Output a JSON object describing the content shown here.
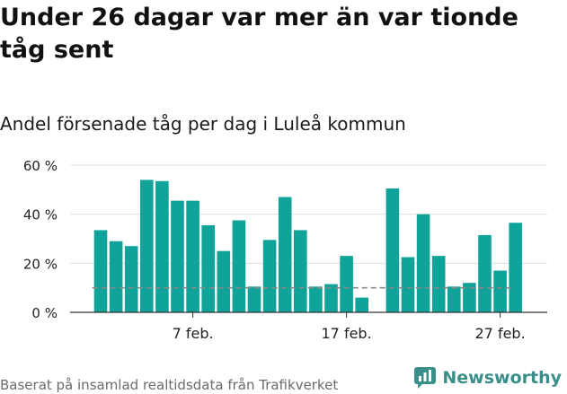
{
  "header": {
    "title": "Under 26 dagar var mer än var tionde tåg sent",
    "subtitle": "Andel försenade tåg per dag i Luleå kommun"
  },
  "footer": {
    "source": "Baserat på insamlad realtidsdata från Trafikverket",
    "brand": "Newsworthy"
  },
  "colors": {
    "bar": "#0fa39a",
    "reference_line": "#888888",
    "grid": "#dddddd",
    "brand": "#3a8f8a"
  },
  "chart_data": {
    "type": "bar",
    "ylim": [
      0,
      60
    ],
    "yticks": [
      0,
      20,
      40,
      60
    ],
    "ytick_labels": [
      "0 %",
      "20 %",
      "40 %",
      "60 %"
    ],
    "reference_value": 10,
    "xtick_labels": [
      {
        "day": 7,
        "label": "7 feb."
      },
      {
        "day": 17,
        "label": "17 feb."
      },
      {
        "day": 27,
        "label": "27 feb."
      }
    ],
    "x": [
      1,
      2,
      3,
      4,
      5,
      6,
      7,
      8,
      9,
      10,
      11,
      12,
      13,
      14,
      15,
      16,
      17,
      18,
      19,
      20,
      21,
      22,
      23,
      24,
      25,
      26,
      27,
      28,
      29
    ],
    "values": [
      33.5,
      29,
      27,
      54,
      53.5,
      45.5,
      45.5,
      35.5,
      25,
      37.5,
      10.5,
      29.5,
      47,
      33.5,
      10.5,
      11.5,
      23,
      6,
      null,
      50.5,
      22.5,
      40,
      23,
      10.5,
      12,
      31.5,
      17,
      36.5,
      null
    ]
  }
}
